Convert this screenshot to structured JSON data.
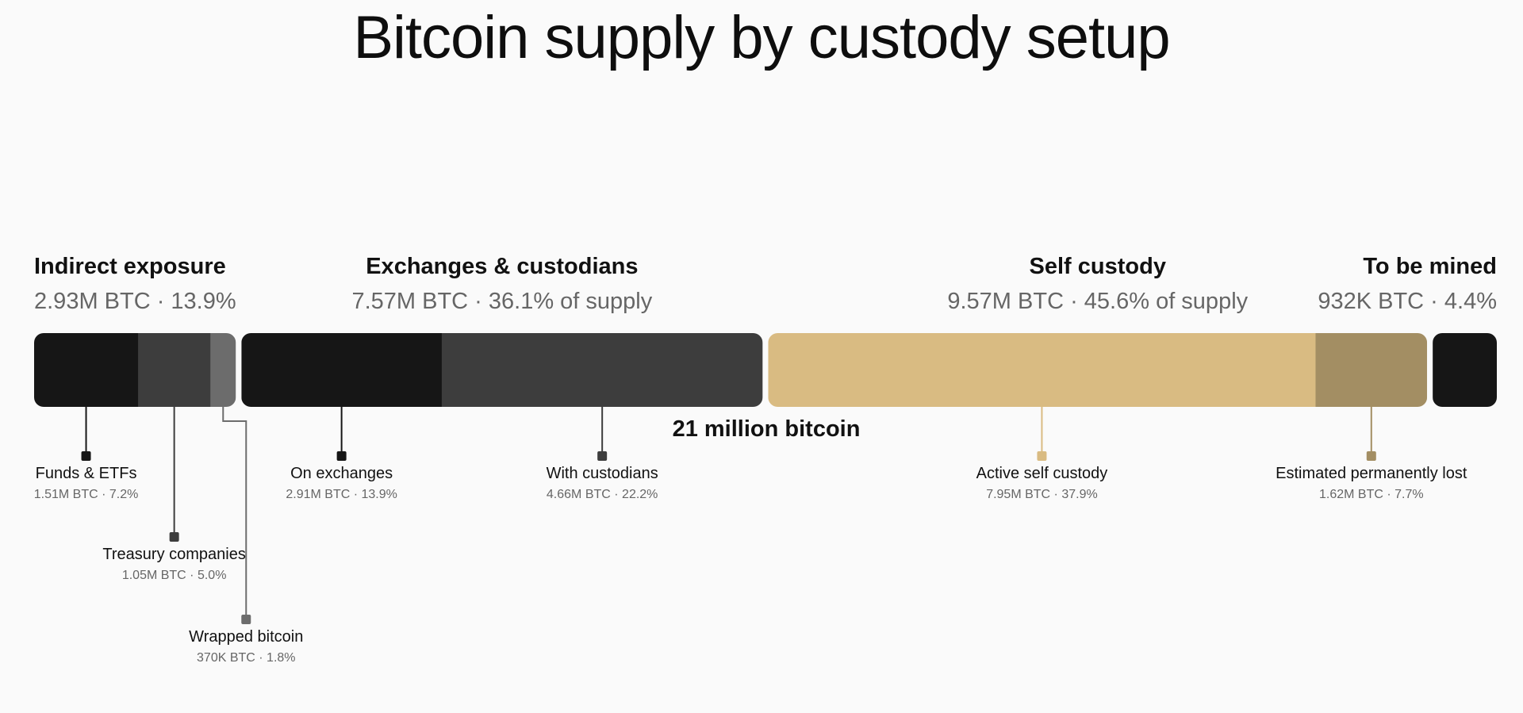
{
  "chart_data": {
    "type": "bar",
    "orientation": "horizontal-stacked",
    "title": "Bitcoin supply by custody setup",
    "total_label": "21 million bitcoin",
    "total": 21000000,
    "groups": [
      {
        "name": "Indirect exposure",
        "summary": "2.93M BTC · 13.9%",
        "align": "left",
        "segments": [
          {
            "name": "Funds & ETFs",
            "value_text": "1.51M BTC · 7.2%",
            "btc_millions": 1.51,
            "percent": 7.2,
            "color": "#161616",
            "label_row": 0
          },
          {
            "name": "Treasury companies",
            "value_text": "1.05M BTC · 5.0%",
            "btc_millions": 1.05,
            "percent": 5.0,
            "color": "#3d3d3d",
            "label_row": 1
          },
          {
            "name": "Wrapped bitcoin",
            "value_text": "370K BTC · 1.8%",
            "btc_millions": 0.37,
            "percent": 1.8,
            "color": "#6c6c6c",
            "label_row": 2
          }
        ]
      },
      {
        "name": "Exchanges & custodians",
        "summary": "7.57M BTC · 36.1% of supply",
        "align": "center",
        "segments": [
          {
            "name": "On exchanges",
            "value_text": "2.91M BTC · 13.9%",
            "btc_millions": 2.91,
            "percent": 13.9,
            "color": "#161616",
            "label_row": 0
          },
          {
            "name": "With custodians",
            "value_text": "4.66M BTC · 22.2%",
            "btc_millions": 4.66,
            "percent": 22.2,
            "color": "#3d3d3d",
            "label_row": 0
          }
        ]
      },
      {
        "name": "Self custody",
        "summary": "9.57M BTC · 45.6% of supply",
        "align": "center",
        "segments": [
          {
            "name": "Active self custody",
            "value_text": "7.95M BTC · 37.9%",
            "btc_millions": 7.95,
            "percent": 37.9,
            "color": "#d9bb82",
            "label_row": 0
          },
          {
            "name": "Estimated permanently lost",
            "value_text": "1.62M BTC · 7.7%",
            "btc_millions": 1.62,
            "percent": 7.7,
            "color": "#a38e63",
            "label_row": 0
          }
        ]
      },
      {
        "name": "To be mined",
        "summary": "932K BTC · 4.4%",
        "align": "right",
        "segments": [
          {
            "name": "",
            "value_text": "",
            "btc_millions": 0.932,
            "percent": 4.4,
            "color": "#161616",
            "label_row": null
          }
        ]
      }
    ]
  }
}
